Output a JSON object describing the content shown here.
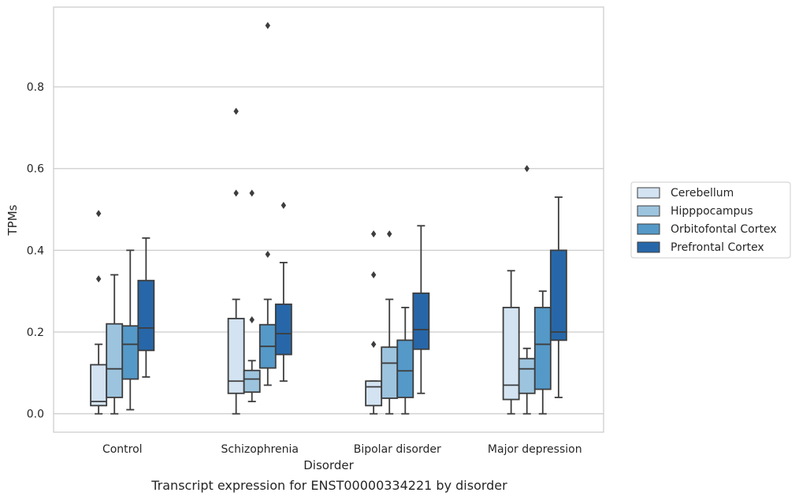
{
  "caption": "Transcript expression for ENST00000334221 by disorder",
  "chart_data": {
    "type": "boxplot",
    "xlabel": "Disorder",
    "ylabel": "TPMs",
    "ylim": [
      -0.045,
      0.995
    ],
    "yticks": [
      0.0,
      0.2,
      0.4,
      0.6,
      0.8
    ],
    "ytick_labels": [
      "0.0",
      "0.2",
      "0.4",
      "0.6",
      "0.8"
    ],
    "grid": "horizontal",
    "legend_position": "right",
    "categories": [
      "Control",
      "Schizophrenia",
      "Bipolar disorder",
      "Major depression"
    ],
    "series": [
      {
        "name": "Cerebellum",
        "color": "#d3e3f2",
        "boxes": [
          {
            "whislo": 0.0,
            "q1": 0.02,
            "med": 0.03,
            "q3": 0.12,
            "whishi": 0.17,
            "fliers": [
              0.33,
              0.49
            ]
          },
          {
            "whislo": 0.0,
            "q1": 0.05,
            "med": 0.08,
            "q3": 0.233,
            "whishi": 0.28,
            "fliers": [
              0.54,
              0.74
            ]
          },
          {
            "whislo": 0.0,
            "q1": 0.02,
            "med": 0.066,
            "q3": 0.08,
            "whishi": 0.08,
            "fliers": [
              0.17,
              0.34,
              0.44
            ]
          },
          {
            "whislo": 0.0,
            "q1": 0.035,
            "med": 0.07,
            "q3": 0.26,
            "whishi": 0.35,
            "fliers": []
          }
        ]
      },
      {
        "name": "Hipppocampus",
        "color": "#9dc4de",
        "boxes": [
          {
            "whislo": 0.0,
            "q1": 0.04,
            "med": 0.11,
            "q3": 0.22,
            "whishi": 0.34,
            "fliers": []
          },
          {
            "whislo": 0.03,
            "q1": 0.053,
            "med": 0.085,
            "q3": 0.106,
            "whishi": 0.13,
            "fliers": [
              0.23,
              0.54
            ]
          },
          {
            "whislo": 0.0,
            "q1": 0.038,
            "med": 0.124,
            "q3": 0.163,
            "whishi": 0.28,
            "fliers": [
              0.44
            ]
          },
          {
            "whislo": 0.0,
            "q1": 0.05,
            "med": 0.11,
            "q3": 0.135,
            "whishi": 0.16,
            "fliers": [
              0.6
            ]
          }
        ]
      },
      {
        "name": "Orbitofontal Cortex",
        "color": "#5599c8",
        "boxes": [
          {
            "whislo": 0.01,
            "q1": 0.085,
            "med": 0.17,
            "q3": 0.215,
            "whishi": 0.4,
            "fliers": []
          },
          {
            "whislo": 0.07,
            "q1": 0.112,
            "med": 0.165,
            "q3": 0.218,
            "whishi": 0.28,
            "fliers": [
              0.39,
              0.95
            ]
          },
          {
            "whislo": 0.0,
            "q1": 0.04,
            "med": 0.105,
            "q3": 0.18,
            "whishi": 0.26,
            "fliers": []
          },
          {
            "whislo": 0.0,
            "q1": 0.06,
            "med": 0.17,
            "q3": 0.26,
            "whishi": 0.3,
            "fliers": []
          }
        ]
      },
      {
        "name": "Prefrontal Cortex",
        "color": "#2767a9",
        "boxes": [
          {
            "whislo": 0.09,
            "q1": 0.155,
            "med": 0.21,
            "q3": 0.326,
            "whishi": 0.43,
            "fliers": []
          },
          {
            "whislo": 0.08,
            "q1": 0.145,
            "med": 0.196,
            "q3": 0.268,
            "whishi": 0.37,
            "fliers": [
              0.51
            ]
          },
          {
            "whislo": 0.05,
            "q1": 0.158,
            "med": 0.206,
            "q3": 0.295,
            "whishi": 0.46,
            "fliers": []
          },
          {
            "whislo": 0.04,
            "q1": 0.18,
            "med": 0.2,
            "q3": 0.4,
            "whishi": 0.53,
            "fliers": []
          }
        ]
      }
    ]
  }
}
